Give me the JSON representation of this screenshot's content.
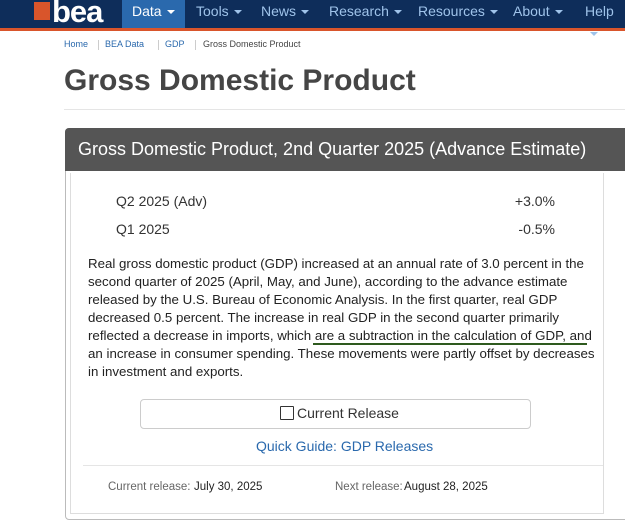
{
  "nav": {
    "logo": "bea",
    "items": [
      "Data",
      "Tools",
      "News",
      "Research",
      "Resources",
      "About",
      "Help"
    ],
    "active": "Data"
  },
  "breadcrumb": [
    "Home",
    "BEA Data",
    "GDP",
    "Gross Domestic Product"
  ],
  "page_title": "Gross Domestic Product",
  "panel": {
    "title": "Gross Domestic Product, 2nd Quarter 2025 (Advance Estimate)",
    "table": {
      "rows": [
        [
          "Q2 2025 (Adv)",
          "+3.0%"
        ],
        [
          "Q1 2025",
          "-0.5%"
        ]
      ]
    },
    "summary_lines": [
      "Real gross domestic product (GDP) increased at an annual rate of 3.0 percent in the",
      "second quarter of 2025 (April, May, and June), according to the advance estimate",
      "released by the U.S. Bureau of Economic Analysis. In the first quarter, real GDP",
      "decreased 0.5 percent. The increase in real GDP in the second quarter primarily",
      "reflected a decrease in imports, which are a subtraction in the calculation of GDP, and",
      "an increase in consumer spending. These movements were partly offset by decreases",
      "in investment and exports."
    ],
    "button": "Current Release",
    "link": "Quick Guide: GDP Releases",
    "footer": {
      "current_label": "Current release:",
      "current_date": "July 30, 2025",
      "next_label": "Next release:",
      "next_date": "August 28, 2025"
    }
  }
}
